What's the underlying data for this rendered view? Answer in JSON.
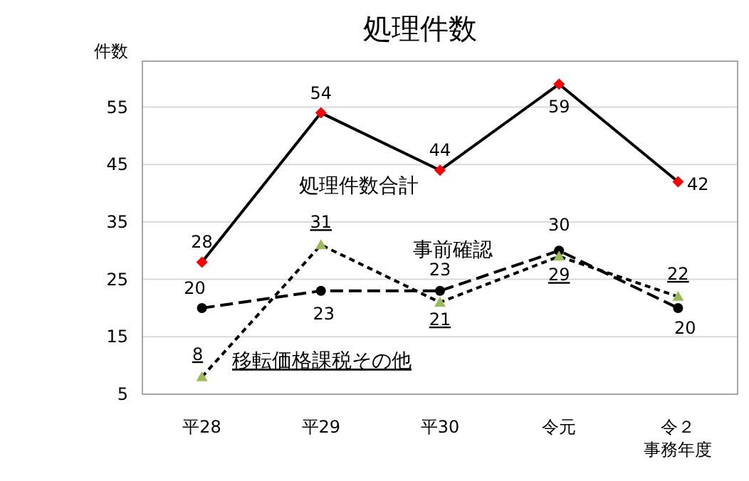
{
  "chart_data": {
    "type": "line",
    "title": "処理件数",
    "ylabel": "件数",
    "xlabel": "事務年度",
    "categories": [
      "平28",
      "平29",
      "平30",
      "令元",
      "令２"
    ],
    "series": [
      {
        "name": "処理件数合計",
        "color": "#ff0000",
        "values": [
          28,
          54,
          44,
          59,
          42
        ],
        "marker": "diamond",
        "line_style": "solid"
      },
      {
        "name": "事前確認",
        "color": "#000000",
        "values": [
          20,
          23,
          23,
          30,
          20
        ],
        "marker": "circle",
        "line_style": "dashed"
      },
      {
        "name": "移転価格課税その他",
        "color": "#9bbb59",
        "values": [
          8,
          31,
          21,
          29,
          22
        ],
        "marker": "triangle",
        "line_style": "dotted"
      }
    ],
    "ylim": [
      5,
      63
    ],
    "yticks": [
      5,
      15,
      25,
      35,
      45,
      55
    ],
    "grid": "y",
    "data_labels": true
  }
}
